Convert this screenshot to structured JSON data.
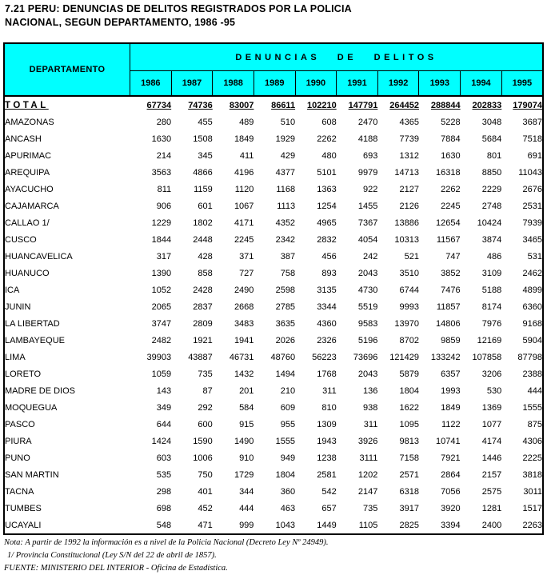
{
  "title": {
    "line1": "7.21  PERU: DENUNCIAS DE DELITOS REGISTRADOS POR LA POLICIA",
    "line2": "NACIONAL, SEGUN DEPARTAMENTO, 1986 -95"
  },
  "colors": {
    "header_background": "#00ffff",
    "border": "#000000",
    "text": "#000000"
  },
  "table": {
    "department_header": "DEPARTAMENTO",
    "group_header": "DENUNCIAS DE DELITOS",
    "years": [
      "1986",
      "1987",
      "1988",
      "1989",
      "1990",
      "1991",
      "1992",
      "1993",
      "1994",
      "1995"
    ],
    "total": {
      "label": "TOTAL",
      "values": [
        67734,
        74736,
        83007,
        86611,
        102210,
        147791,
        264452,
        288844,
        202833,
        179074
      ]
    },
    "rows": [
      {
        "label": "AMAZONAS",
        "values": [
          280,
          455,
          489,
          510,
          608,
          2470,
          4365,
          5228,
          3048,
          3687
        ]
      },
      {
        "label": "ANCASH",
        "values": [
          1630,
          1508,
          1849,
          1929,
          2262,
          4188,
          7739,
          7884,
          5684,
          7518
        ]
      },
      {
        "label": "APURIMAC",
        "values": [
          214,
          345,
          411,
          429,
          480,
          693,
          1312,
          1630,
          801,
          691
        ]
      },
      {
        "label": "AREQUIPA",
        "values": [
          3563,
          4866,
          4196,
          4377,
          5101,
          9979,
          14713,
          16318,
          8850,
          11043
        ]
      },
      {
        "label": "AYACUCHO",
        "values": [
          811,
          1159,
          1120,
          1168,
          1363,
          922,
          2127,
          2262,
          2229,
          2676
        ]
      },
      {
        "label": "CAJAMARCA",
        "values": [
          906,
          601,
          1067,
          1113,
          1254,
          1455,
          2126,
          2245,
          2748,
          2531
        ]
      },
      {
        "label": "CALLAO 1/",
        "values": [
          1229,
          1802,
          4171,
          4352,
          4965,
          7367,
          13886,
          12654,
          10424,
          7939
        ]
      },
      {
        "label": "CUSCO",
        "values": [
          1844,
          2448,
          2245,
          2342,
          2832,
          4054,
          10313,
          11567,
          3874,
          3465
        ]
      },
      {
        "label": "HUANCAVELICA",
        "values": [
          317,
          428,
          371,
          387,
          456,
          242,
          521,
          747,
          486,
          531
        ]
      },
      {
        "label": "HUANUCO",
        "values": [
          1390,
          858,
          727,
          758,
          893,
          2043,
          3510,
          3852,
          3109,
          2462
        ]
      },
      {
        "label": "ICA",
        "values": [
          1052,
          2428,
          2490,
          2598,
          3135,
          4730,
          6744,
          7476,
          5188,
          4899
        ]
      },
      {
        "label": "JUNIN",
        "values": [
          2065,
          2837,
          2668,
          2785,
          3344,
          5519,
          9993,
          11857,
          8174,
          6360
        ]
      },
      {
        "label": "LA LIBERTAD",
        "values": [
          3747,
          2809,
          3483,
          3635,
          4360,
          9583,
          13970,
          14806,
          7976,
          9168
        ]
      },
      {
        "label": "LAMBAYEQUE",
        "values": [
          2482,
          1921,
          1941,
          2026,
          2326,
          5196,
          8702,
          9859,
          12169,
          5904
        ]
      },
      {
        "label": "LIMA",
        "values": [
          39903,
          43887,
          46731,
          48760,
          56223,
          73696,
          121429,
          133242,
          107858,
          87798
        ]
      },
      {
        "label": "LORETO",
        "values": [
          1059,
          735,
          1432,
          1494,
          1768,
          2043,
          5879,
          6357,
          3206,
          2388
        ]
      },
      {
        "label": "MADRE DE DIOS",
        "values": [
          143,
          87,
          201,
          210,
          311,
          136,
          1804,
          1993,
          530,
          444
        ]
      },
      {
        "label": "MOQUEGUA",
        "values": [
          349,
          292,
          584,
          609,
          810,
          938,
          1622,
          1849,
          1369,
          1555
        ]
      },
      {
        "label": "PASCO",
        "values": [
          644,
          600,
          915,
          955,
          1309,
          311,
          1095,
          1122,
          1077,
          875
        ]
      },
      {
        "label": "PIURA",
        "values": [
          1424,
          1590,
          1490,
          1555,
          1943,
          3926,
          9813,
          10741,
          4174,
          4306
        ]
      },
      {
        "label": "PUNO",
        "values": [
          603,
          1006,
          910,
          949,
          1238,
          3111,
          7158,
          7921,
          1446,
          2225
        ]
      },
      {
        "label": "SAN MARTIN",
        "values": [
          535,
          750,
          1729,
          1804,
          2581,
          1202,
          2571,
          2864,
          2157,
          3818
        ]
      },
      {
        "label": "TACNA",
        "values": [
          298,
          401,
          344,
          360,
          542,
          2147,
          6318,
          7056,
          2575,
          3011
        ]
      },
      {
        "label": "TUMBES",
        "values": [
          698,
          452,
          444,
          463,
          657,
          735,
          3917,
          3920,
          1281,
          1517
        ]
      },
      {
        "label": "UCAYALI",
        "values": [
          548,
          471,
          999,
          1043,
          1449,
          1105,
          2825,
          3394,
          2400,
          2263
        ]
      }
    ]
  },
  "notes": {
    "nota": "Nota: A partir de 1992 la información es a nivel de la Policia Nacional (Decreto Ley Nº 24949).",
    "footnote1": "1/  Provincia Constitucional (Ley S/N del 22 de abril de 1857).",
    "fuente": "FUENTE: MINISTERIO DEL INTERIOR - Oficina de Estadística."
  }
}
